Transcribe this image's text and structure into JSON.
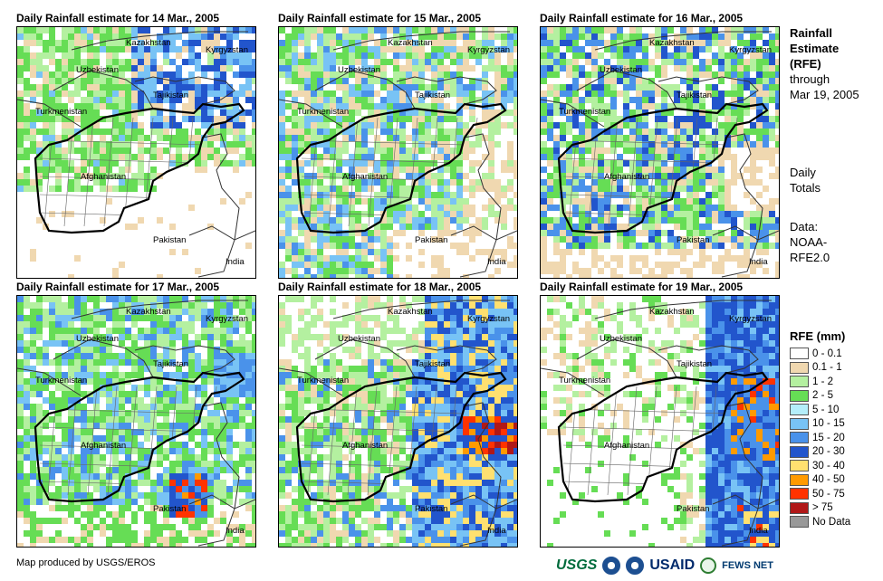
{
  "panels": [
    {
      "title": "Daily Rainfall estimate for 14 Mar., 2005",
      "scheme": 0
    },
    {
      "title": "Daily Rainfall estimate for 15 Mar., 2005",
      "scheme": 1
    },
    {
      "title": "Daily Rainfall estimate for 16 Mar., 2005",
      "scheme": 2
    },
    {
      "title": "Daily Rainfall estimate for 17 Mar., 2005",
      "scheme": 3
    },
    {
      "title": "Daily Rainfall estimate for 18 Mar., 2005",
      "scheme": 4
    },
    {
      "title": "Daily Rainfall estimate for 19 Mar., 2005",
      "scheme": 5
    }
  ],
  "map_labels": {
    "kazakhstan": "Kazakhstan",
    "kyrgyzstan": "Kyrgyzstan",
    "uzbekistan": "Uzbekistan",
    "tajikistan": "Tajikistan",
    "turkmenistan": "Turkmenistan",
    "afghanistan": "Afghanistan",
    "pakistan": "Pakistan",
    "india": "India"
  },
  "sidebar": {
    "title_line1": "Rainfall",
    "title_line2": "Estimate",
    "title_line3": "(RFE)",
    "through_label": "through",
    "through_date": "Mar 19, 2005",
    "daily_line1": "Daily",
    "daily_line2": "Totals",
    "data_label": "Data:",
    "data_source_line1": "NOAA-",
    "data_source_line2": "RFE2.0"
  },
  "legend": {
    "title": "RFE (mm)",
    "items": [
      {
        "label": "0 - 0.1",
        "color": "#ffffff"
      },
      {
        "label": "0.1 - 1",
        "color": "#f0d8b0"
      },
      {
        "label": "1 - 2",
        "color": "#b4f0a0"
      },
      {
        "label": "2 - 5",
        "color": "#66dd55"
      },
      {
        "label": "5 - 10",
        "color": "#b4eefa"
      },
      {
        "label": "10 - 15",
        "color": "#78c3f5"
      },
      {
        "label": "15 - 20",
        "color": "#4a92ea"
      },
      {
        "label": "20 - 30",
        "color": "#2255cc"
      },
      {
        "label": "30 - 40",
        "color": "#ffe070"
      },
      {
        "label": "40 - 50",
        "color": "#ff9a00"
      },
      {
        "label": "50 - 75",
        "color": "#ff3300"
      },
      {
        "label": "> 75",
        "color": "#b01818"
      },
      {
        "label": "No Data",
        "color": "#999999"
      }
    ]
  },
  "credit": "Map produced by USGS/EROS",
  "logos": {
    "usgs": "USGS",
    "usaid": "USAID",
    "fews": "FEWS NET"
  }
}
